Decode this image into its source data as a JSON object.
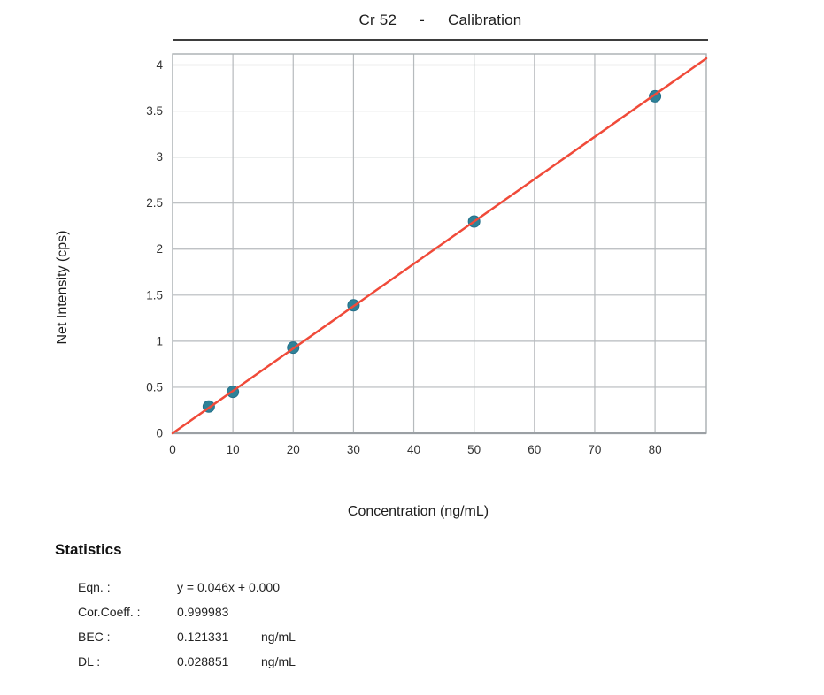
{
  "title": {
    "element": "Cr 52",
    "separator": "-",
    "label": "Calibration"
  },
  "axes": {
    "x_label": "Concentration (ng/mL)",
    "y_label": "Net Intensity (cps)"
  },
  "chart_data": {
    "type": "scatter",
    "title": "Cr 52 - Calibration",
    "xlabel": "Concentration (ng/mL)",
    "ylabel": "Net Intensity (cps)",
    "x": [
      6,
      10,
      20,
      30,
      50,
      80
    ],
    "y": [
      0.29,
      0.45,
      0.93,
      1.39,
      2.3,
      3.66
    ],
    "fit_line": {
      "slope": 0.046,
      "intercept": 0.0,
      "equation": "y = 0.046x + 0.000"
    },
    "x_ticks": [
      0,
      10,
      20,
      30,
      40,
      50,
      60,
      70,
      80
    ],
    "y_ticks": [
      0,
      0.5,
      1,
      1.5,
      2,
      2.5,
      3,
      3.5,
      4
    ],
    "xlim": [
      0,
      88.5
    ],
    "ylim": [
      0,
      4.12
    ],
    "grid": true,
    "legend": "none",
    "colors": {
      "marker": "#2e8298",
      "marker_edge": "#24708a",
      "line": "#f04a39",
      "grid": "#b6babd",
      "border": "#a9aeb1",
      "axis": "#9ba0a4",
      "tick_text": "#333333"
    }
  },
  "statistics": {
    "heading": "Statistics",
    "rows": [
      {
        "label": "Eqn. :",
        "value": "y = 0.046x + 0.000",
        "unit": ""
      },
      {
        "label": "Cor.Coeff. :",
        "value": "0.999983",
        "unit": ""
      },
      {
        "label": "BEC :",
        "value": "0.121331",
        "unit": "ng/mL"
      },
      {
        "label": "DL :",
        "value": "0.028851",
        "unit": "ng/mL"
      }
    ]
  }
}
